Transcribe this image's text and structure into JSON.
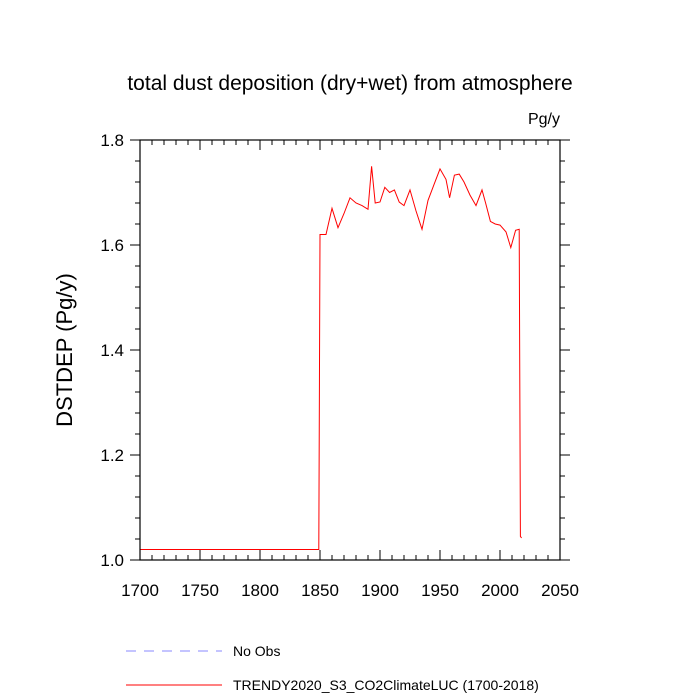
{
  "chart_data": {
    "type": "line",
    "title": "total dust deposition (dry+wet) from atmosphere",
    "units_label": "Pg/y",
    "ylabel": "DSTDEP  (Pg/y)",
    "xlabel": "",
    "xlim": [
      1700,
      2050
    ],
    "ylim": [
      1.0,
      1.8
    ],
    "x_ticks": [
      1700,
      1750,
      1800,
      1850,
      1900,
      1950,
      2000,
      2050
    ],
    "x_tick_labels": [
      "1700",
      "1750",
      "1800",
      "1850",
      "1900",
      "1950",
      "2000",
      "2050"
    ],
    "y_ticks": [
      1.0,
      1.2,
      1.4,
      1.6,
      1.8
    ],
    "y_tick_labels": [
      "1.0",
      "1.2",
      "1.4",
      "1.6",
      "1.8"
    ],
    "grid": false,
    "legend_position": "bottom",
    "series": [
      {
        "name": "No Obs",
        "color": "#8888ff",
        "style": "dashed",
        "x": [],
        "y": []
      },
      {
        "name": "TRENDY2020_S3_CO2ClimateLUC (1700-2018)",
        "color": "#ff0000",
        "style": "solid",
        "x": [
          1700,
          1849,
          1850,
          1852,
          1855,
          1860,
          1865,
          1870,
          1875,
          1880,
          1885,
          1890,
          1893,
          1896,
          1900,
          1904,
          1908,
          1912,
          1916,
          1920,
          1925,
          1930,
          1935,
          1940,
          1945,
          1950,
          1955,
          1958,
          1962,
          1966,
          1970,
          1975,
          1980,
          1985,
          1988,
          1992,
          1996,
          2000,
          2005,
          2009,
          2013,
          2016,
          2017,
          2018
        ],
        "y": [
          1.02,
          1.02,
          1.62,
          1.62,
          1.62,
          1.67,
          1.633,
          1.66,
          1.69,
          1.68,
          1.675,
          1.668,
          1.75,
          1.68,
          1.682,
          1.71,
          1.7,
          1.705,
          1.682,
          1.675,
          1.705,
          1.665,
          1.63,
          1.685,
          1.715,
          1.745,
          1.725,
          1.69,
          1.733,
          1.735,
          1.72,
          1.695,
          1.675,
          1.705,
          1.68,
          1.645,
          1.64,
          1.638,
          1.625,
          1.595,
          1.628,
          1.63,
          1.045,
          1.042
        ]
      }
    ]
  }
}
